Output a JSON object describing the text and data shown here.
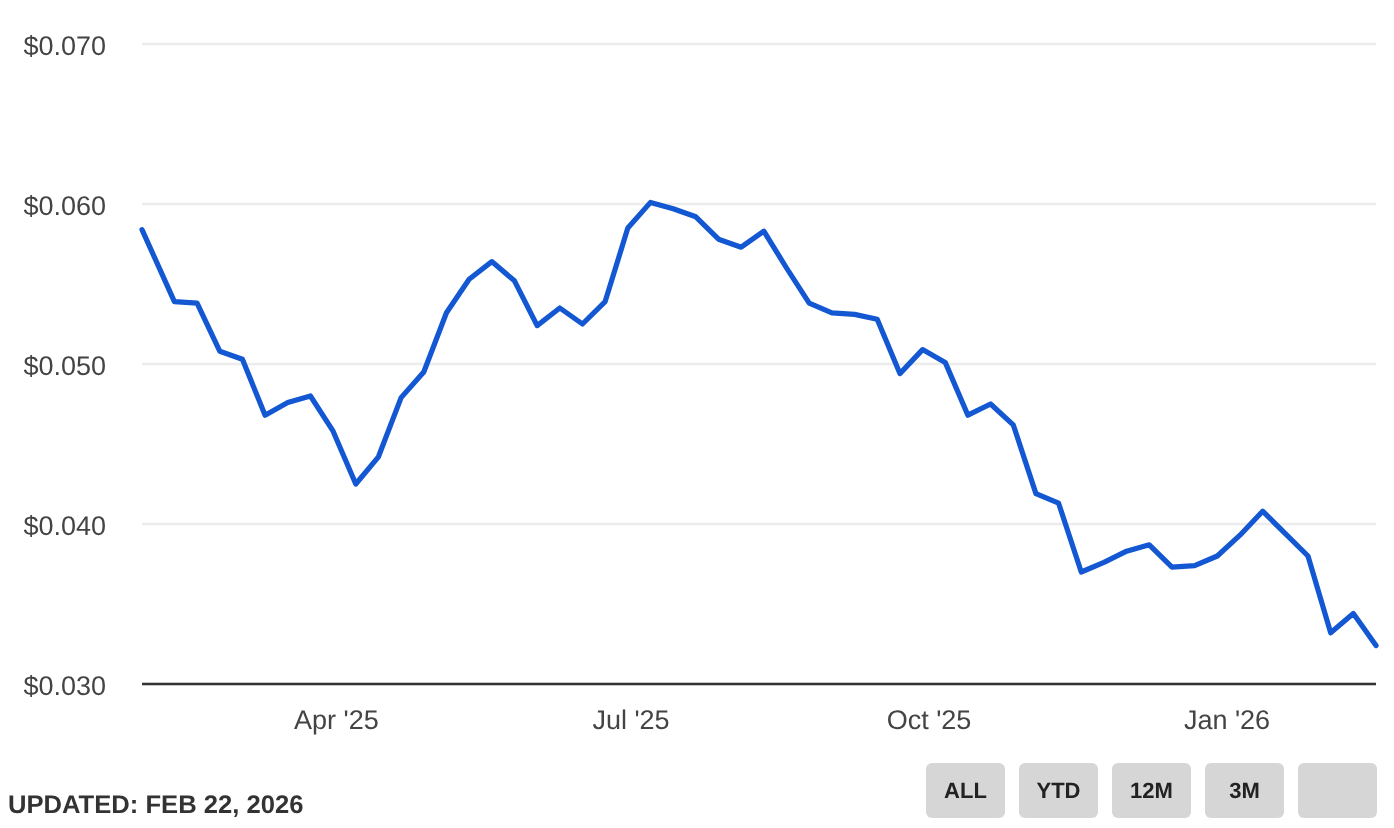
{
  "chart_data": {
    "type": "line",
    "color": "#1357d3",
    "x": [
      "2025-01-31",
      "2025-02-10",
      "2025-02-17",
      "2025-02-24",
      "2025-03-03",
      "2025-03-10",
      "2025-03-17",
      "2025-03-24",
      "2025-03-31",
      "2025-04-07",
      "2025-04-14",
      "2025-04-21",
      "2025-04-28",
      "2025-05-05",
      "2025-05-12",
      "2025-05-19",
      "2025-05-26",
      "2025-06-02",
      "2025-06-09",
      "2025-06-16",
      "2025-06-23",
      "2025-06-30",
      "2025-07-07",
      "2025-07-14",
      "2025-07-21",
      "2025-07-28",
      "2025-08-04",
      "2025-08-11",
      "2025-08-18",
      "2025-08-25",
      "2025-09-01",
      "2025-09-08",
      "2025-09-15",
      "2025-09-22",
      "2025-09-29",
      "2025-10-06",
      "2025-10-13",
      "2025-10-20",
      "2025-10-27",
      "2025-11-03",
      "2025-11-10",
      "2025-11-17",
      "2025-11-24",
      "2025-12-01",
      "2025-12-08",
      "2025-12-15",
      "2025-12-22",
      "2025-12-29",
      "2026-01-05",
      "2026-01-12",
      "2026-01-19",
      "2026-01-26",
      "2026-02-02",
      "2026-02-09",
      "2026-02-16"
    ],
    "values": [
      0.0584,
      0.0539,
      0.0538,
      0.0508,
      0.0503,
      0.0468,
      0.0476,
      0.048,
      0.0458,
      0.0425,
      0.0442,
      0.0479,
      0.0495,
      0.0532,
      0.0553,
      0.0564,
      0.0552,
      0.0524,
      0.0535,
      0.0525,
      0.0539,
      0.0585,
      0.0601,
      0.0597,
      0.0592,
      0.0578,
      0.0573,
      0.0583,
      0.056,
      0.0538,
      0.0532,
      0.0531,
      0.0528,
      0.0494,
      0.0509,
      0.0501,
      0.0468,
      0.0475,
      0.0462,
      0.0419,
      0.0413,
      0.037,
      0.0376,
      0.0383,
      0.0387,
      0.0373,
      0.0374,
      0.038,
      0.0393,
      0.0408,
      0.0394,
      0.038,
      0.0332,
      0.0344,
      0.0324
    ],
    "xlim": [
      "2025-01-31",
      "2026-02-16"
    ],
    "xticks": [
      {
        "value": "2025-04-01",
        "label": "Apr '25"
      },
      {
        "value": "2025-07-01",
        "label": "Jul '25"
      },
      {
        "value": "2025-10-01",
        "label": "Oct '25"
      },
      {
        "value": "2026-01-01",
        "label": "Jan '26"
      }
    ],
    "ylim": [
      0.03,
      0.07
    ],
    "yticks": [
      {
        "value": 0.03,
        "label": "$0.030"
      },
      {
        "value": 0.04,
        "label": "$0.040"
      },
      {
        "value": 0.05,
        "label": "$0.050"
      },
      {
        "value": 0.06,
        "label": "$0.060"
      },
      {
        "value": 0.07,
        "label": "$0.070"
      }
    ],
    "grid": "y",
    "annotations": [
      "UPDATED: FEB 22, 2026",
      "ALL",
      "YTD",
      "12M",
      "3M"
    ]
  }
}
